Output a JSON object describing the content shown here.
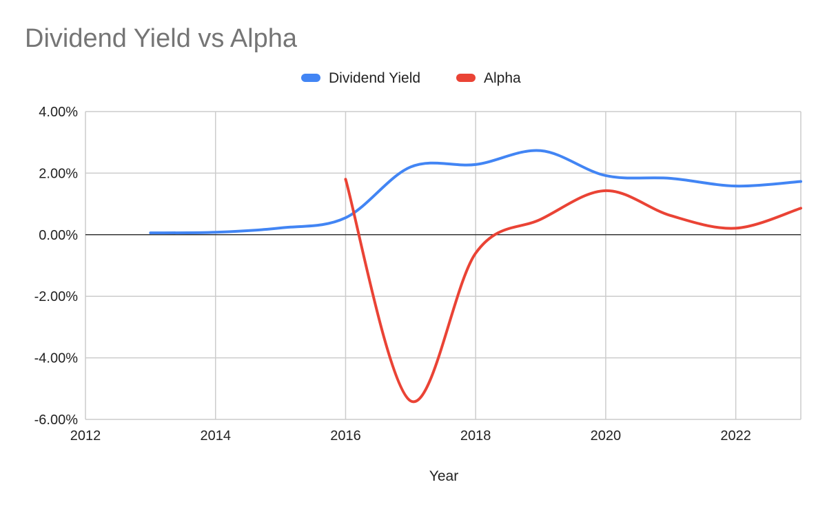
{
  "chart_data": {
    "type": "line",
    "title": "Dividend Yield vs Alpha",
    "xlabel": "Year",
    "ylabel": "",
    "xlim": [
      2012,
      2023
    ],
    "ylim": [
      -0.06,
      0.04
    ],
    "x_ticks": [
      2012,
      2014,
      2016,
      2018,
      2020,
      2022
    ],
    "y_ticks": [
      -0.06,
      -0.04,
      -0.02,
      0,
      0.02,
      0.04
    ],
    "y_tick_labels": [
      "-6.00%",
      "-4.00%",
      "-2.00%",
      "0.00%",
      "2.00%",
      "4.00%"
    ],
    "x_tick_labels": [
      "2012",
      "2014",
      "2016",
      "2018",
      "2020",
      "2022"
    ],
    "grid": true,
    "legend_position": "top",
    "series": [
      {
        "name": "Dividend Yield",
        "color": "#4285f4",
        "x": [
          2013,
          2014,
          2015,
          2016,
          2017,
          2018,
          2019,
          2020,
          2021,
          2022,
          2023
        ],
        "y": [
          0.0006,
          0.0008,
          0.0022,
          0.0055,
          0.022,
          0.0228,
          0.0273,
          0.0192,
          0.0183,
          0.0158,
          0.0173
        ]
      },
      {
        "name": "Alpha",
        "color": "#ea4335",
        "x": [
          2016,
          2017,
          2018,
          2019,
          2020,
          2021,
          2022,
          2023
        ],
        "y": [
          0.018,
          -0.054,
          -0.006,
          0.005,
          0.0143,
          0.0062,
          0.0021,
          0.0086
        ]
      }
    ]
  }
}
